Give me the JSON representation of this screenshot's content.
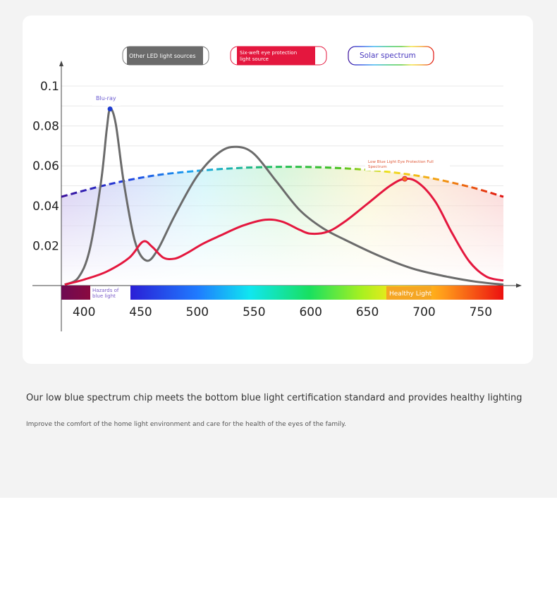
{
  "legend": {
    "other_led": "Other LED light sources",
    "six_weft": "Six-weft eye protection light source",
    "solar": "Solar spectrum"
  },
  "annotations": {
    "blu_ray": "Blu-ray",
    "low_blue": "Low Blue Light Eye Protection Full Spectrum",
    "hazards": "Hazards of blue light",
    "healthy": "Healthy Light"
  },
  "colors": {
    "other_led": "#6b6b6b",
    "six_weft": "#e4173e",
    "solar_outline": "#2b3fd0",
    "hazard_band": "#7a0a4a",
    "healthy_badge": "#f5a623"
  },
  "chart_data": {
    "type": "line",
    "xlim": [
      380,
      770
    ],
    "ylim": [
      0,
      0.1
    ],
    "xticks": [
      "400",
      "450",
      "500",
      "550",
      "600",
      "650",
      "700",
      "750"
    ],
    "yticks": [
      "0.1",
      "0.08",
      "0.06",
      "0.04",
      "0.02"
    ],
    "series": [
      {
        "name": "Other LED light sources",
        "x": [
          383,
          395,
          405,
          415,
          420,
          423,
          428,
          435,
          445,
          455,
          465,
          480,
          500,
          520,
          535,
          550,
          570,
          590,
          610,
          630,
          660,
          690,
          720,
          745,
          770
        ],
        "y": [
          0.0005,
          0.004,
          0.018,
          0.052,
          0.078,
          0.0885,
          0.081,
          0.052,
          0.022,
          0.0125,
          0.018,
          0.035,
          0.055,
          0.067,
          0.0695,
          0.066,
          0.052,
          0.038,
          0.029,
          0.023,
          0.015,
          0.0085,
          0.0045,
          0.002,
          0.0005
        ]
      },
      {
        "name": "Six-weft eye protection light source",
        "x": [
          383,
          400,
          420,
          440,
          452,
          460,
          470,
          480,
          490,
          505,
          520,
          540,
          560,
          575,
          590,
          600,
          615,
          630,
          650,
          670,
          683,
          695,
          710,
          725,
          740,
          755,
          770
        ],
        "y": [
          0.0005,
          0.003,
          0.007,
          0.014,
          0.022,
          0.0195,
          0.014,
          0.0135,
          0.016,
          0.021,
          0.025,
          0.03,
          0.033,
          0.032,
          0.028,
          0.026,
          0.027,
          0.032,
          0.041,
          0.05,
          0.0535,
          0.0515,
          0.042,
          0.026,
          0.012,
          0.0045,
          0.0025
        ]
      },
      {
        "name": "Solar spectrum",
        "x": [
          380,
          420,
          460,
          500,
          540,
          580,
          620,
          660,
          700,
          740,
          770
        ],
        "y": [
          0.0445,
          0.0505,
          0.055,
          0.0575,
          0.059,
          0.0595,
          0.059,
          0.0575,
          0.0545,
          0.0495,
          0.0445
        ]
      }
    ],
    "markers": [
      {
        "x": 423,
        "y": 0.0885
      },
      {
        "x": 683,
        "y": 0.0535
      }
    ]
  },
  "text": {
    "headline": "Our low blue spectrum chip meets the bottom blue light certification standard and provides healthy lighting",
    "subline": "Improve the comfort of the home light environment and care for the health of the eyes of the family."
  }
}
